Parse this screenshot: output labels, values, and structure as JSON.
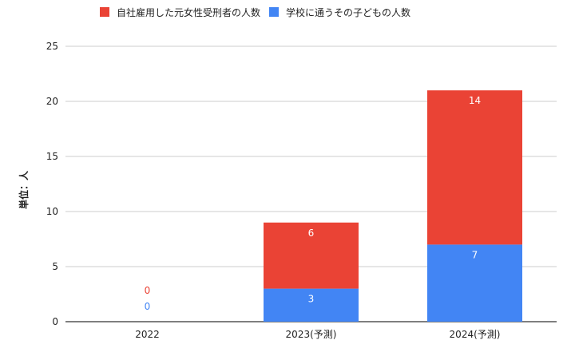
{
  "chart_data": {
    "type": "bar",
    "stacked": true,
    "categories": [
      "2022",
      "2023(予測)",
      "2024(予測)"
    ],
    "series": [
      {
        "name": "学校に通うその子どもの人数",
        "values": [
          0,
          3,
          7
        ],
        "color": "#4285f4",
        "label_color": "#4285f4"
      },
      {
        "name": "自社雇用した元女性受刑者の人数",
        "values": [
          0,
          6,
          14
        ],
        "color": "#ea4335",
        "label_color": "#ea4335"
      }
    ],
    "legend_order": [
      "自社雇用した元女性受刑者の人数",
      "学校に通うその子どもの人数"
    ],
    "ylabel": "単位：人",
    "xlabel": "",
    "ylim": [
      0,
      25
    ],
    "yticks": [
      0,
      5,
      10,
      15,
      20,
      25
    ],
    "grid": true,
    "legend_position": "top",
    "colors": {
      "grid": "#cccccc",
      "axis": "#333333",
      "text": "#222222",
      "label_inside": "#ffffff"
    }
  }
}
